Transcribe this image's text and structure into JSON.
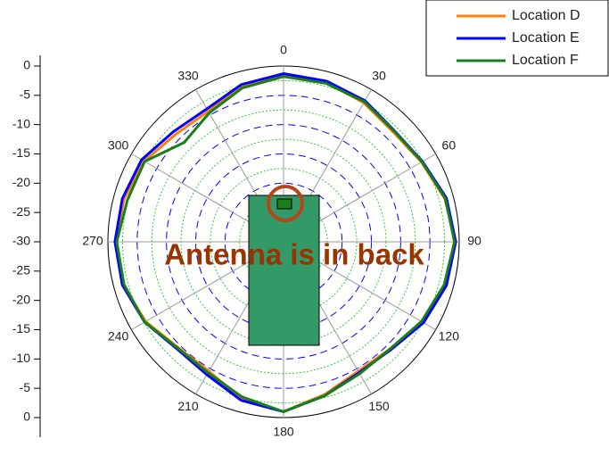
{
  "chart_data": {
    "type": "polar",
    "angles": [
      0,
      15,
      30,
      45,
      60,
      75,
      90,
      105,
      120,
      135,
      150,
      165,
      180,
      195,
      210,
      225,
      240,
      255,
      270,
      285,
      300,
      315,
      330,
      345
    ],
    "angle_ticks": [
      0,
      30,
      60,
      90,
      120,
      150,
      180,
      210,
      240,
      270,
      300,
      330
    ],
    "ylim": [
      -30,
      0
    ],
    "yticks": [
      0,
      -5,
      -10,
      -15,
      -20,
      -25,
      -30
    ],
    "legend": "top-right",
    "annotation": "Antenna is in back",
    "series": [
      {
        "name": "Location D",
        "color": "#ff7f0e",
        "values": [
          -1.5,
          -1.8,
          -2.6,
          -3.5,
          -2.8,
          -1.5,
          -0.6,
          -1.4,
          -2.6,
          -4.2,
          -4.5,
          -3.0,
          -1.0,
          -2.2,
          -4.5,
          -4.5,
          -2.8,
          -1.6,
          -1.3,
          -1.8,
          -2.5,
          -4.0,
          -4.3,
          -2.4
        ]
      },
      {
        "name": "Location E",
        "color": "#0000ff",
        "values": [
          -1.3,
          -1.6,
          -2.2,
          -3.2,
          -2.6,
          -1.2,
          -0.6,
          -1.2,
          -2.4,
          -4.0,
          -4.2,
          -2.8,
          -1.0,
          -2.0,
          -3.8,
          -4.2,
          -2.6,
          -1.5,
          -1.2,
          -1.5,
          -2.0,
          -3.4,
          -3.8,
          -2.2
        ]
      },
      {
        "name": "Location F",
        "color": "#1a7f1a",
        "values": [
          -1.8,
          -2.0,
          -2.4,
          -3.3,
          -2.7,
          -1.4,
          -0.8,
          -1.6,
          -2.8,
          -4.2,
          -4.0,
          -2.8,
          -1.0,
          -2.6,
          -4.2,
          -4.4,
          -2.6,
          -1.8,
          -1.5,
          -2.4,
          -2.6,
          -6.0,
          -4.6,
          -2.8
        ]
      }
    ]
  }
}
